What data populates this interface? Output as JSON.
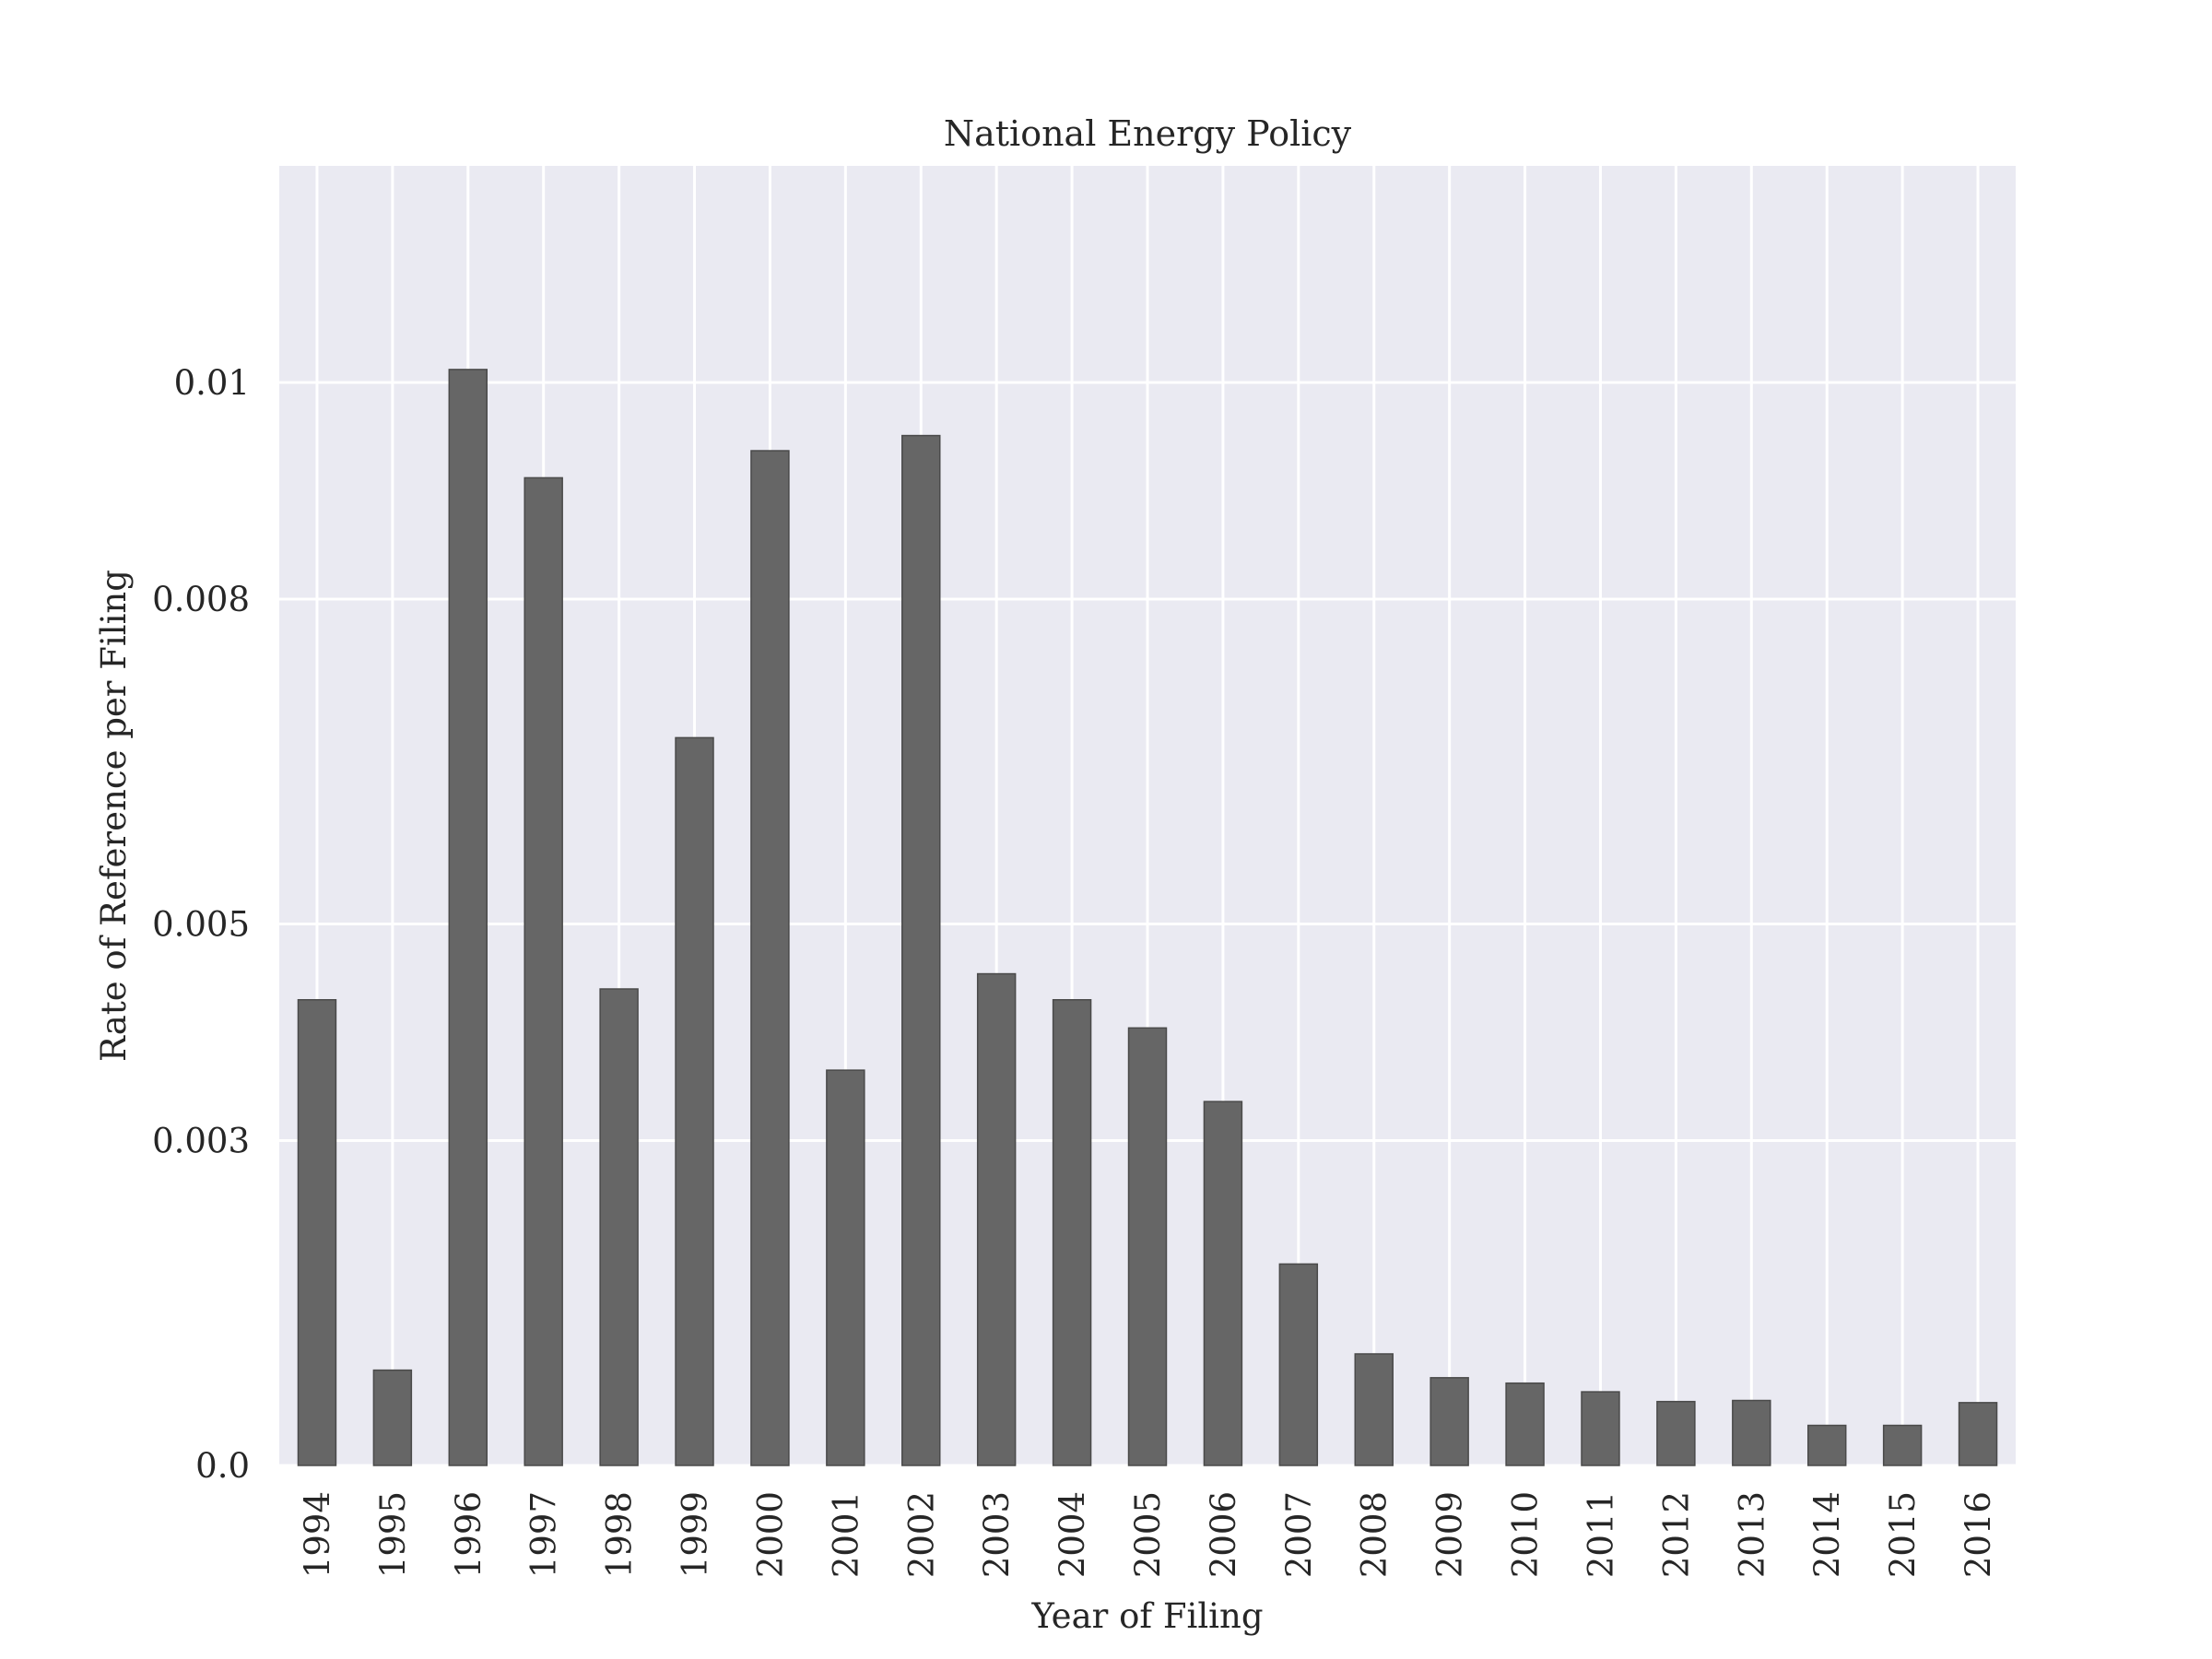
{
  "chart_data": {
    "type": "bar",
    "title": "National Energy Policy",
    "xlabel": "Year of Filing",
    "ylabel": "Rate of Reference per Filing",
    "categories": [
      "1994",
      "1995",
      "1996",
      "1997",
      "1998",
      "1999",
      "2000",
      "2001",
      "2002",
      "2003",
      "2004",
      "2005",
      "2006",
      "2007",
      "2008",
      "2009",
      "2010",
      "2011",
      "2012",
      "2013",
      "2014",
      "2015",
      "2016"
    ],
    "values": [
      0.0043,
      0.00088,
      0.01012,
      0.00912,
      0.0044,
      0.00672,
      0.00937,
      0.00365,
      0.00951,
      0.00454,
      0.0043,
      0.00404,
      0.00336,
      0.00186,
      0.00103,
      0.00081,
      0.00076,
      0.00068,
      0.00059,
      0.0006,
      0.00037,
      0.00037,
      0.00058
    ],
    "yticks": [
      0.0,
      0.003,
      0.005,
      0.008,
      0.01
    ],
    "ytick_labels": [
      "0.0",
      "0.003",
      "0.005",
      "0.008",
      "0.01"
    ],
    "ylim": [
      0,
      0.012
    ],
    "grid": true,
    "colors": {
      "bar": "#666666",
      "bar_edge": "#4a4a4a",
      "plot_background": "#eaeaf2",
      "grid": "#ffffff"
    }
  }
}
